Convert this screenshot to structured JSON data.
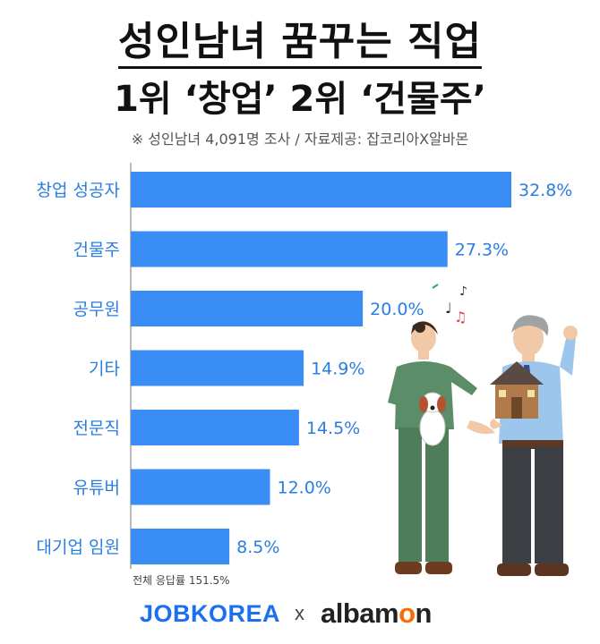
{
  "header": {
    "title_line1": "성인남녀 꿈꾸는 직업",
    "title_line2": "1위 ‘창업’ 2위 ‘건물주’",
    "subtitle": "※ 성인남녀 4,091명 조사 / 자료제공: 잡코리아X알바몬"
  },
  "chart_data": {
    "type": "bar",
    "orientation": "horizontal",
    "categories": [
      "창업 성공자",
      "건물주",
      "공무원",
      "기타",
      "전문직",
      "유튜버",
      "대기업 임원"
    ],
    "values": [
      32.8,
      27.3,
      20.0,
      14.9,
      14.5,
      12.0,
      8.5
    ],
    "value_labels": [
      "32.8%",
      "27.3%",
      "20.0%",
      "14.9%",
      "14.5%",
      "12.0%",
      "8.5%"
    ],
    "unit": "%",
    "title": "성인남녀 꿈꾸는 직업",
    "bar_color": "#3a8df5",
    "label_color": "#2a7de1",
    "grid": false,
    "legend": "none"
  },
  "footnote": "전체 응답률 151.5%",
  "brands": {
    "left": "JOBKOREA",
    "separator": "x",
    "right_prefix": "albam",
    "right_o": "o",
    "right_suffix": "n",
    "left_color": "#1d6ff2",
    "accent_color": "#ff6a00"
  }
}
